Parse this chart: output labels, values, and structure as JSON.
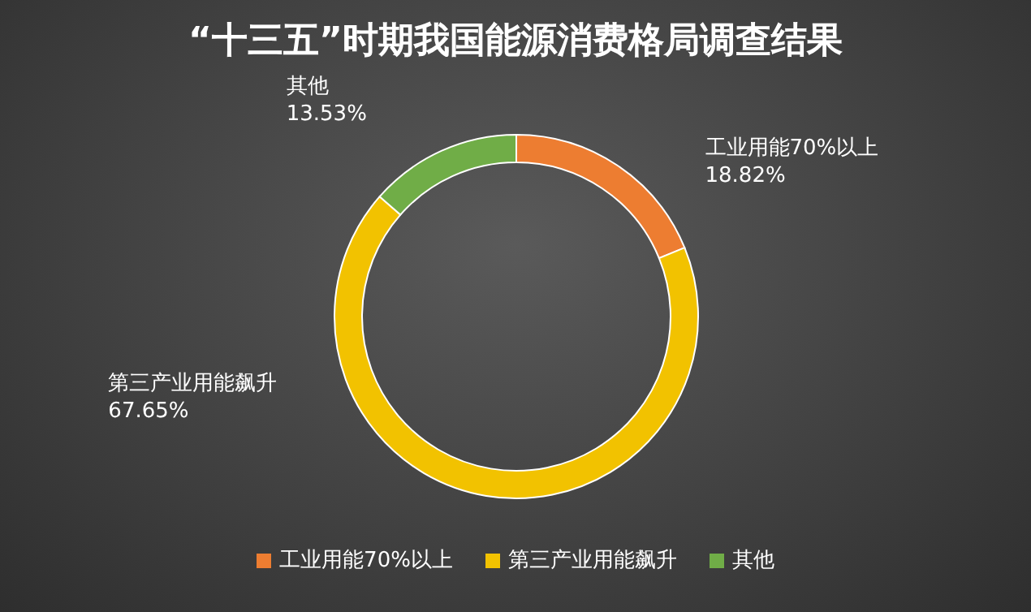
{
  "chart_data": {
    "type": "donut",
    "title": "“十三五”时期我国能源消费格局调查结果",
    "categories": [
      "工业用能70%以上",
      "第三产业用能飙升",
      "其他"
    ],
    "values": [
      18.82,
      67.65,
      13.53
    ],
    "value_labels": [
      "18.82%",
      "67.65%",
      "13.53%"
    ],
    "colors": [
      "#ed7d31",
      "#f2c200",
      "#70ad47"
    ],
    "legend": "bottom"
  }
}
